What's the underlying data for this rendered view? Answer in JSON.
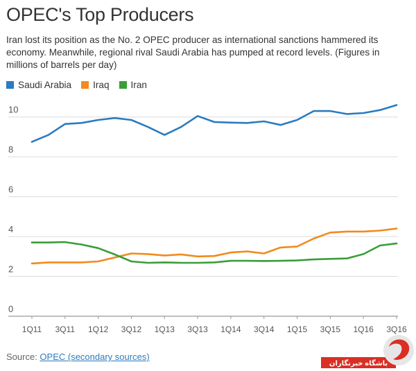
{
  "header": {
    "title": "OPEC's Top Producers",
    "subtitle": "Iran lost its position as the No. 2 OPEC producer as international sanctions hammered its economy. Meanwhile, regional rival Saudi Arabia has pumped at record levels. (Figures in millions of barrels per day)"
  },
  "source": {
    "prefix": "Source: ",
    "link": "OPEC (secondary sources)"
  },
  "watermark": {
    "text": "باشگاه خبرنگاران"
  },
  "chart_data": {
    "type": "line",
    "x": [
      "1Q11",
      "2Q11",
      "3Q11",
      "4Q11",
      "1Q12",
      "2Q12",
      "3Q12",
      "4Q12",
      "1Q13",
      "2Q13",
      "3Q13",
      "4Q13",
      "1Q14",
      "2Q14",
      "3Q14",
      "4Q14",
      "1Q15",
      "2Q15",
      "3Q15",
      "4Q15",
      "1Q16",
      "2Q16",
      "3Q16"
    ],
    "xticks": [
      "1Q11",
      "3Q11",
      "1Q12",
      "3Q12",
      "1Q13",
      "3Q13",
      "1Q14",
      "3Q14",
      "1Q15",
      "3Q15",
      "1Q16",
      "3Q16"
    ],
    "yticks": [
      0,
      2,
      4,
      6,
      8,
      10
    ],
    "ylim": [
      0,
      11
    ],
    "grid": true,
    "legend_position": "top-left",
    "series": [
      {
        "name": "Saudi Arabia",
        "color": "#2b7bbf",
        "values": [
          8.75,
          9.1,
          9.65,
          9.7,
          9.85,
          9.95,
          9.85,
          9.5,
          9.1,
          9.5,
          10.05,
          9.75,
          9.72,
          9.7,
          9.78,
          9.6,
          9.85,
          10.3,
          10.3,
          10.15,
          10.2,
          10.35,
          10.6
        ]
      },
      {
        "name": "Iraq",
        "color": "#f28a1e",
        "values": [
          2.65,
          2.7,
          2.7,
          2.7,
          2.75,
          2.95,
          3.15,
          3.12,
          3.05,
          3.1,
          3.0,
          3.02,
          3.2,
          3.25,
          3.15,
          3.45,
          3.5,
          3.9,
          4.2,
          4.25,
          4.25,
          4.3,
          4.4
        ]
      },
      {
        "name": "Iran",
        "color": "#3a9d3a",
        "values": [
          3.7,
          3.7,
          3.72,
          3.6,
          3.42,
          3.1,
          2.75,
          2.68,
          2.7,
          2.68,
          2.68,
          2.7,
          2.78,
          2.78,
          2.77,
          2.78,
          2.8,
          2.85,
          2.88,
          2.9,
          3.12,
          3.55,
          3.65
        ]
      }
    ]
  }
}
